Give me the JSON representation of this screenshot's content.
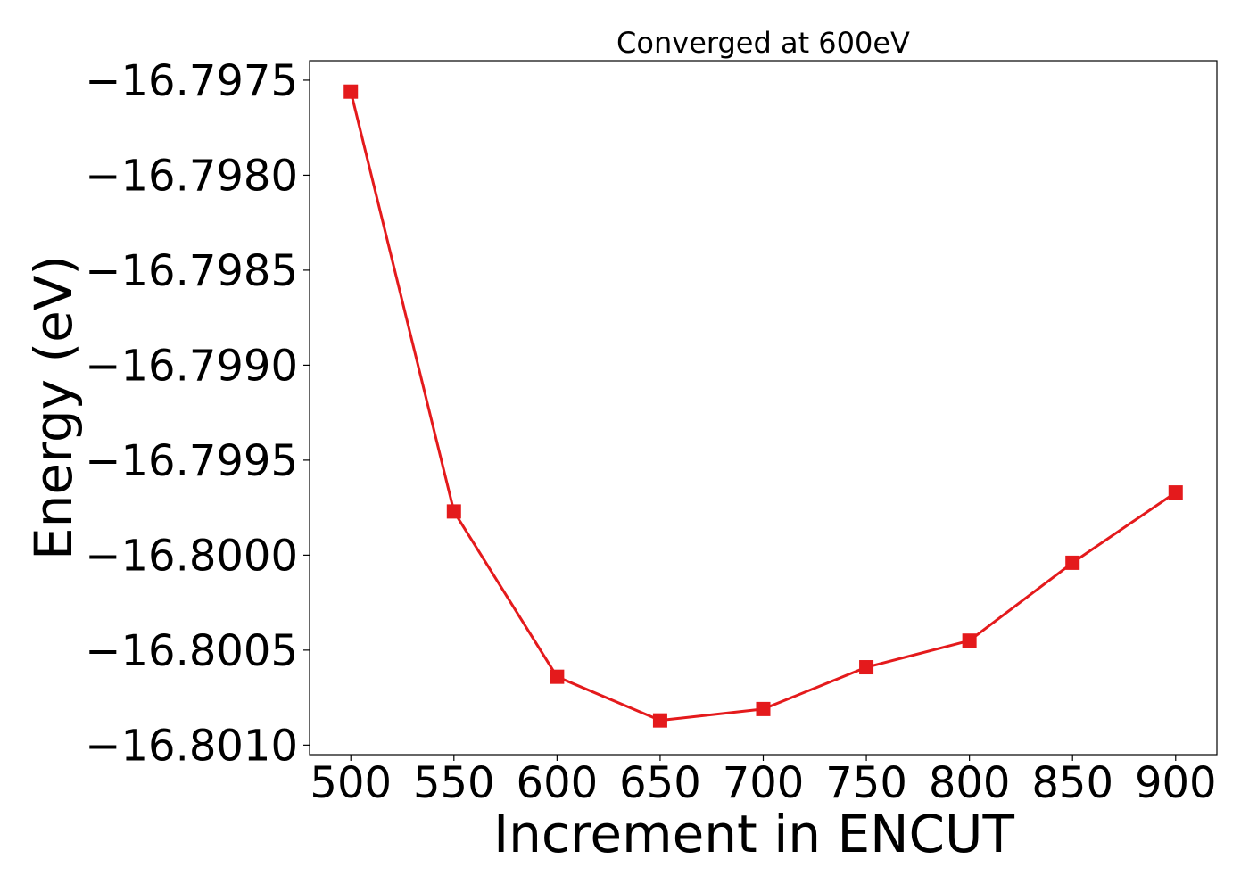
{
  "chart_data": {
    "type": "line",
    "title": "Converged at 600eV",
    "xlabel": "Increment in ENCUT",
    "ylabel": "Energy (eV)",
    "x": [
      500,
      550,
      600,
      650,
      700,
      750,
      800,
      850,
      900
    ],
    "series": [
      {
        "values": [
          -16.79756,
          -16.79977,
          -16.80064,
          -16.80087,
          -16.80081,
          -16.80059,
          -16.80045,
          -16.80004,
          -16.79967
        ],
        "color": "#e41a1c",
        "marker": "square"
      }
    ],
    "xticks": [
      500,
      550,
      600,
      650,
      700,
      750,
      800,
      850,
      900
    ],
    "xtick_labels": [
      "500",
      "550",
      "600",
      "650",
      "700",
      "750",
      "800",
      "850",
      "900"
    ],
    "yticks": [
      -16.7975,
      -16.798,
      -16.7985,
      -16.799,
      -16.7995,
      -16.8,
      -16.8005,
      -16.801
    ],
    "ytick_labels": [
      "−16.7975",
      "−16.7980",
      "−16.7985",
      "−16.7990",
      "−16.7995",
      "−16.8000",
      "−16.8005",
      "−16.8010"
    ],
    "xlim": [
      480,
      920
    ],
    "ylim": [
      -16.80105,
      -16.797397
    ],
    "grid": false,
    "legend": "none"
  }
}
